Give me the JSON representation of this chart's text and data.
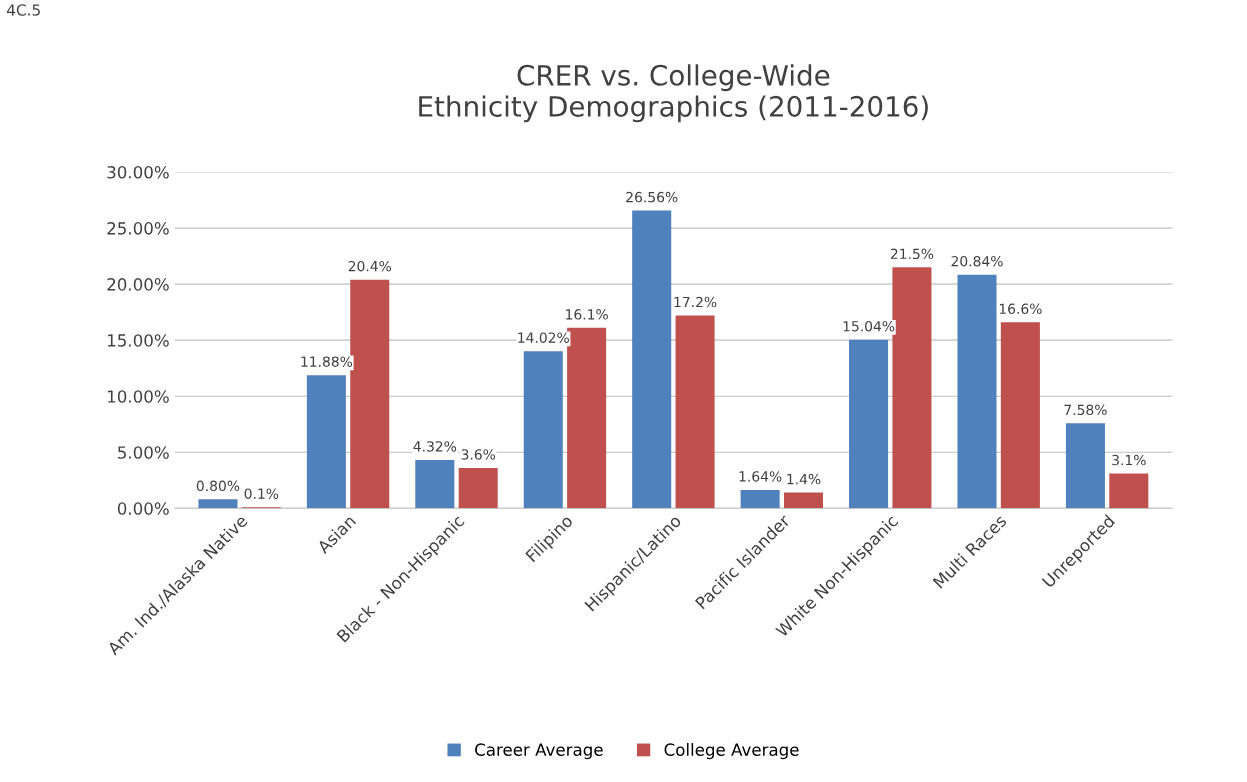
{
  "chart_data": {
    "type": "bar",
    "title": "CRER vs. College-Wide\nEthnicity Demographics (2011-2016)",
    "categories": [
      "Am. Ind./Alaska Native",
      "Asian",
      "Black - Non-Hispanic",
      "Filipino",
      "Hispanic/Latino",
      "Pacific Islander",
      "White Non-Hispanic",
      "Multi Races",
      "Unreported"
    ],
    "series": [
      {
        "name": "Career Average",
        "color": "#4f81bd",
        "values": [
          0.8,
          11.88,
          4.32,
          14.02,
          26.56,
          1.64,
          15.04,
          20.84,
          7.58
        ],
        "value_labels": [
          "0.80%",
          "11.88%",
          "4.32%",
          "14.02%",
          "26.56%",
          "1.64%",
          "15.04%",
          "20.84%",
          "7.58%"
        ]
      },
      {
        "name": "College Average",
        "color": "#c0504d",
        "values": [
          0.1,
          20.4,
          3.6,
          16.1,
          17.2,
          1.4,
          21.5,
          16.6,
          3.1
        ],
        "value_labels": [
          "0.1%",
          "20.4%",
          "3.6%",
          "16.1%",
          "17.2%",
          "1.4%",
          "21.5%",
          "16.6%",
          "3.1%"
        ]
      }
    ],
    "ylim": [
      0,
      30
    ],
    "yticks": [
      {
        "value": 0,
        "label": "0.00%"
      },
      {
        "value": 5,
        "label": "5.00%"
      },
      {
        "value": 10,
        "label": "10.00%"
      },
      {
        "value": 15,
        "label": "15.00%"
      },
      {
        "value": 20,
        "label": "20.00%"
      },
      {
        "value": 25,
        "label": "25.00%"
      },
      {
        "value": 30,
        "label": "30.00%"
      }
    ],
    "grid": "y",
    "legend": "bottom",
    "annotations": [
      "4C.5"
    ]
  }
}
